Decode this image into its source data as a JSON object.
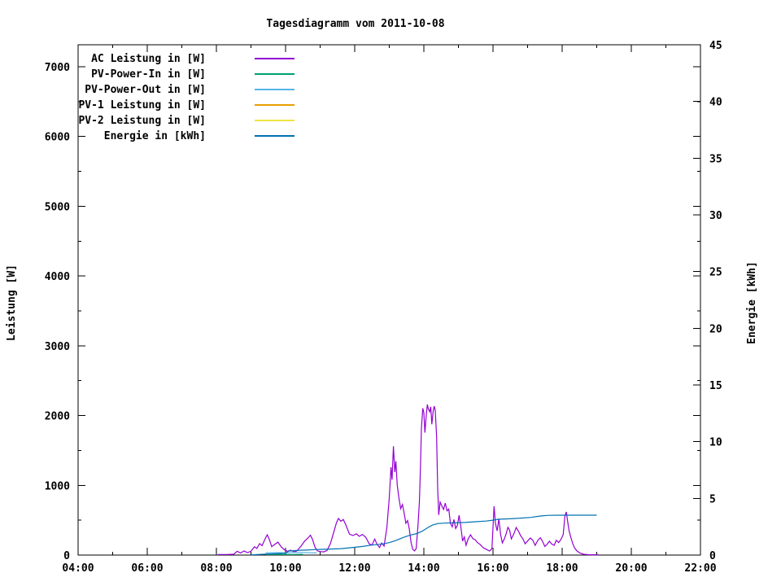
{
  "page": {
    "title": "Tagesdiagramm vom 2011-10-08"
  },
  "chart_data": {
    "type": "line",
    "title": "Tagesdiagramm vom 2011-10-08",
    "grid": false,
    "legend_position": "top-left-inside",
    "x_axis": {
      "label": "",
      "range_hours": [
        4,
        22
      ],
      "major_step_hours": 2,
      "minor_step_hours": 1,
      "tick_labels": [
        "04:00",
        "06:00",
        "08:00",
        "10:00",
        "12:00",
        "14:00",
        "16:00",
        "18:00",
        "20:00",
        "22:00"
      ]
    },
    "y1_axis": {
      "label": "Leistung [W]",
      "range": [
        0,
        7315
      ],
      "ticks": [
        0,
        1000,
        2000,
        3000,
        4000,
        5000,
        6000,
        7000
      ],
      "minor_step": 500
    },
    "y2_axis": {
      "label": "Energie [kWh]",
      "range": [
        0,
        45
      ],
      "ticks": [
        0,
        5,
        10,
        15,
        20,
        25,
        30,
        35,
        40,
        45
      ]
    },
    "series": [
      {
        "name": "AC Leistung in [W]",
        "color": "#9400D3",
        "axis": "y1",
        "points": [
          [
            8.05,
            8
          ],
          [
            8.3,
            8
          ],
          [
            8.5,
            12
          ],
          [
            8.6,
            55
          ],
          [
            8.7,
            30
          ],
          [
            8.8,
            60
          ],
          [
            8.9,
            35
          ],
          [
            9.0,
            55
          ],
          [
            9.1,
            120
          ],
          [
            9.17,
            95
          ],
          [
            9.25,
            165
          ],
          [
            9.32,
            135
          ],
          [
            9.42,
            245
          ],
          [
            9.47,
            290
          ],
          [
            9.53,
            225
          ],
          [
            9.6,
            120
          ],
          [
            9.68,
            150
          ],
          [
            9.78,
            185
          ],
          [
            9.88,
            115
          ],
          [
            9.97,
            75
          ],
          [
            10.05,
            55
          ],
          [
            10.15,
            70
          ],
          [
            10.25,
            45
          ],
          [
            10.33,
            60
          ],
          [
            10.45,
            130
          ],
          [
            10.55,
            200
          ],
          [
            10.65,
            245
          ],
          [
            10.72,
            285
          ],
          [
            10.78,
            225
          ],
          [
            10.85,
            115
          ],
          [
            10.92,
            60
          ],
          [
            11.0,
            50
          ],
          [
            11.1,
            45
          ],
          [
            11.2,
            65
          ],
          [
            11.3,
            170
          ],
          [
            11.4,
            340
          ],
          [
            11.47,
            460
          ],
          [
            11.53,
            525
          ],
          [
            11.6,
            485
          ],
          [
            11.67,
            510
          ],
          [
            11.75,
            425
          ],
          [
            11.85,
            300
          ],
          [
            11.95,
            280
          ],
          [
            12.05,
            305
          ],
          [
            12.13,
            270
          ],
          [
            12.22,
            295
          ],
          [
            12.32,
            255
          ],
          [
            12.42,
            160
          ],
          [
            12.5,
            145
          ],
          [
            12.58,
            230
          ],
          [
            12.65,
            150
          ],
          [
            12.72,
            110
          ],
          [
            12.78,
            172
          ],
          [
            12.85,
            128
          ],
          [
            12.93,
            390
          ],
          [
            13.0,
            820
          ],
          [
            13.05,
            1260
          ],
          [
            13.08,
            1080
          ],
          [
            13.12,
            1560
          ],
          [
            13.16,
            1190
          ],
          [
            13.19,
            1345
          ],
          [
            13.23,
            1000
          ],
          [
            13.28,
            815
          ],
          [
            13.33,
            665
          ],
          [
            13.38,
            725
          ],
          [
            13.43,
            600
          ],
          [
            13.48,
            455
          ],
          [
            13.53,
            495
          ],
          [
            13.58,
            375
          ],
          [
            13.63,
            180
          ],
          [
            13.68,
            80
          ],
          [
            13.73,
            60
          ],
          [
            13.78,
            95
          ],
          [
            13.83,
            430
          ],
          [
            13.87,
            760
          ],
          [
            13.9,
            1250
          ],
          [
            13.93,
            1820
          ],
          [
            13.97,
            2105
          ],
          [
            14.0,
            2040
          ],
          [
            14.03,
            1755
          ],
          [
            14.07,
            2010
          ],
          [
            14.1,
            2160
          ],
          [
            14.13,
            2095
          ],
          [
            14.17,
            2055
          ],
          [
            14.2,
            2125
          ],
          [
            14.23,
            1875
          ],
          [
            14.27,
            2065
          ],
          [
            14.3,
            2135
          ],
          [
            14.33,
            2075
          ],
          [
            14.37,
            1690
          ],
          [
            14.4,
            950
          ],
          [
            14.43,
            575
          ],
          [
            14.47,
            760
          ],
          [
            14.52,
            705
          ],
          [
            14.57,
            655
          ],
          [
            14.62,
            745
          ],
          [
            14.67,
            635
          ],
          [
            14.72,
            660
          ],
          [
            14.77,
            455
          ],
          [
            14.82,
            405
          ],
          [
            14.87,
            510
          ],
          [
            14.92,
            380
          ],
          [
            14.97,
            425
          ],
          [
            15.02,
            570
          ],
          [
            15.07,
            405
          ],
          [
            15.12,
            200
          ],
          [
            15.17,
            260
          ],
          [
            15.22,
            140
          ],
          [
            15.28,
            230
          ],
          [
            15.35,
            290
          ],
          [
            15.42,
            235
          ],
          [
            15.48,
            222
          ],
          [
            15.55,
            180
          ],
          [
            15.62,
            155
          ],
          [
            15.72,
            105
          ],
          [
            15.82,
            78
          ],
          [
            15.9,
            58
          ],
          [
            15.97,
            92
          ],
          [
            16.03,
            700
          ],
          [
            16.07,
            455
          ],
          [
            16.12,
            348
          ],
          [
            16.17,
            522
          ],
          [
            16.22,
            298
          ],
          [
            16.27,
            175
          ],
          [
            16.33,
            235
          ],
          [
            16.38,
            302
          ],
          [
            16.43,
            398
          ],
          [
            16.48,
            358
          ],
          [
            16.53,
            232
          ],
          [
            16.6,
            300
          ],
          [
            16.67,
            395
          ],
          [
            16.73,
            348
          ],
          [
            16.8,
            278
          ],
          [
            16.87,
            228
          ],
          [
            16.93,
            162
          ],
          [
            17.0,
            202
          ],
          [
            17.08,
            245
          ],
          [
            17.15,
            212
          ],
          [
            17.22,
            140
          ],
          [
            17.3,
            215
          ],
          [
            17.37,
            248
          ],
          [
            17.43,
            198
          ],
          [
            17.5,
            122
          ],
          [
            17.57,
            158
          ],
          [
            17.63,
            198
          ],
          [
            17.7,
            158
          ],
          [
            17.77,
            140
          ],
          [
            17.83,
            212
          ],
          [
            17.9,
            178
          ],
          [
            17.97,
            228
          ],
          [
            18.03,
            295
          ],
          [
            18.08,
            560
          ],
          [
            18.12,
            618
          ],
          [
            18.16,
            478
          ],
          [
            18.2,
            348
          ],
          [
            18.25,
            258
          ],
          [
            18.3,
            172
          ],
          [
            18.36,
            102
          ],
          [
            18.43,
            58
          ],
          [
            18.52,
            28
          ],
          [
            18.62,
            12
          ],
          [
            18.75,
            6
          ],
          [
            18.9,
            5
          ],
          [
            19.05,
            5
          ]
        ]
      },
      {
        "name": "PV-Power-In in [W]",
        "color": "#009E73",
        "axis": "y1",
        "points": [
          [
            9.42,
            8
          ],
          [
            9.8,
            10
          ],
          [
            10.2,
            8
          ],
          [
            10.5,
            10
          ]
        ]
      },
      {
        "name": "PV-Power-Out in [W]",
        "color": "#56B4E9",
        "axis": "y1",
        "points": [
          [
            9.42,
            30
          ],
          [
            9.7,
            35
          ],
          [
            10.0,
            32
          ],
          [
            10.3,
            38
          ],
          [
            10.6,
            35
          ],
          [
            10.9,
            30
          ]
        ]
      },
      {
        "name": "PV-1 Leistung in [W]",
        "color": "#E69F00",
        "axis": "y1",
        "points": []
      },
      {
        "name": "PV-2 Leistung in [W]",
        "color": "#F0E442",
        "axis": "y1",
        "points": []
      },
      {
        "name": "Energie in [kWh]",
        "color": "#0072B2",
        "axis": "y2",
        "points": [
          [
            9.0,
            0.02
          ],
          [
            9.42,
            0.08
          ],
          [
            9.7,
            0.12
          ],
          [
            10.0,
            0.18
          ],
          [
            10.1,
            0.36
          ],
          [
            10.4,
            0.42
          ],
          [
            10.7,
            0.46
          ],
          [
            11.0,
            0.5
          ],
          [
            11.3,
            0.53
          ],
          [
            11.6,
            0.57
          ],
          [
            11.9,
            0.65
          ],
          [
            12.2,
            0.75
          ],
          [
            12.5,
            0.88
          ],
          [
            12.8,
            0.98
          ],
          [
            13.0,
            1.1
          ],
          [
            13.2,
            1.3
          ],
          [
            13.4,
            1.55
          ],
          [
            13.6,
            1.75
          ],
          [
            13.8,
            1.9
          ],
          [
            13.95,
            2.1
          ],
          [
            14.1,
            2.4
          ],
          [
            14.25,
            2.65
          ],
          [
            14.4,
            2.78
          ],
          [
            14.6,
            2.82
          ],
          [
            14.9,
            2.84
          ],
          [
            15.2,
            2.88
          ],
          [
            15.5,
            2.94
          ],
          [
            15.8,
            3.0
          ],
          [
            16.0,
            3.08
          ],
          [
            16.15,
            3.16
          ],
          [
            16.5,
            3.2
          ],
          [
            16.8,
            3.26
          ],
          [
            17.1,
            3.32
          ],
          [
            17.35,
            3.44
          ],
          [
            17.6,
            3.5
          ],
          [
            18.0,
            3.52
          ],
          [
            18.5,
            3.52
          ],
          [
            19.0,
            3.52
          ]
        ]
      }
    ]
  }
}
